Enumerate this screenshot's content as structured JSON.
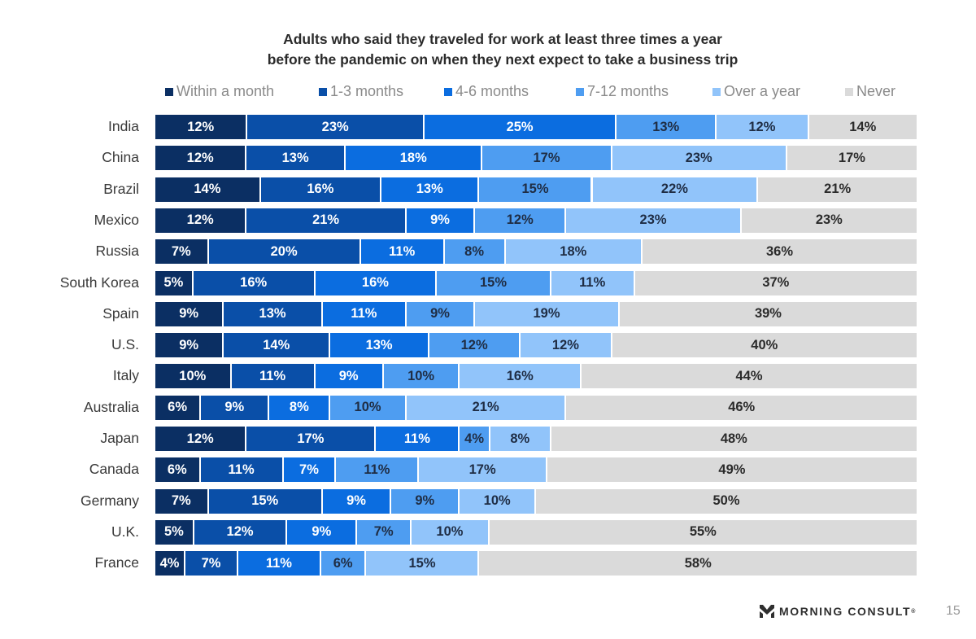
{
  "page": {
    "brand": "MORNING CONSULT",
    "brand_mark": "®",
    "page_number": "15"
  },
  "chart_data": {
    "type": "bar",
    "orientation": "horizontal",
    "stacked": true,
    "title": "Adults who said they traveled for work at least three times a year before the pandemic on when they next expect to take a business trip",
    "title_lines": [
      "Adults who said they traveled for work at least three times a year",
      "before the pandemic on when they next expect to take a business trip"
    ],
    "xlabel": "",
    "ylabel": "",
    "xlim": [
      0,
      100
    ],
    "grid": false,
    "legend_position": "top",
    "unit": "%",
    "categories": [
      "India",
      "China",
      "Brazil",
      "Mexico",
      "Russia",
      "South Korea",
      "Spain",
      "U.S.",
      "Italy",
      "Australia",
      "Japan",
      "Canada",
      "Germany",
      "U.K.",
      "France"
    ],
    "series": [
      {
        "name": "Within a month",
        "color": "#0b2f63",
        "label_color": "#ffffff",
        "values": [
          12,
          12,
          14,
          12,
          7,
          5,
          9,
          9,
          10,
          6,
          12,
          6,
          7,
          5,
          4
        ]
      },
      {
        "name": "1-3 months",
        "color": "#0a4fa8",
        "label_color": "#ffffff",
        "values": [
          23,
          13,
          16,
          21,
          20,
          16,
          13,
          14,
          11,
          9,
          17,
          11,
          15,
          12,
          7
        ]
      },
      {
        "name": "4-6 months",
        "color": "#0b6de0",
        "label_color": "#ffffff",
        "values": [
          25,
          18,
          13,
          9,
          11,
          16,
          11,
          13,
          9,
          8,
          11,
          7,
          9,
          9,
          11
        ]
      },
      {
        "name": "7-12 months",
        "color": "#4e9df1",
        "label_color": "#1f2d44",
        "values": [
          13,
          17,
          15,
          12,
          8,
          15,
          9,
          12,
          10,
          10,
          4,
          11,
          9,
          7,
          6
        ]
      },
      {
        "name": "Over a year",
        "color": "#91c4fa",
        "label_color": "#1f2d44",
        "values": [
          12,
          23,
          22,
          23,
          18,
          11,
          19,
          12,
          16,
          21,
          8,
          17,
          10,
          10,
          15
        ]
      },
      {
        "name": "Never",
        "color": "#dadada",
        "label_color": "#2b2b2b",
        "values": [
          14,
          17,
          21,
          23,
          36,
          37,
          39,
          40,
          44,
          46,
          48,
          49,
          50,
          55,
          58
        ]
      }
    ]
  }
}
